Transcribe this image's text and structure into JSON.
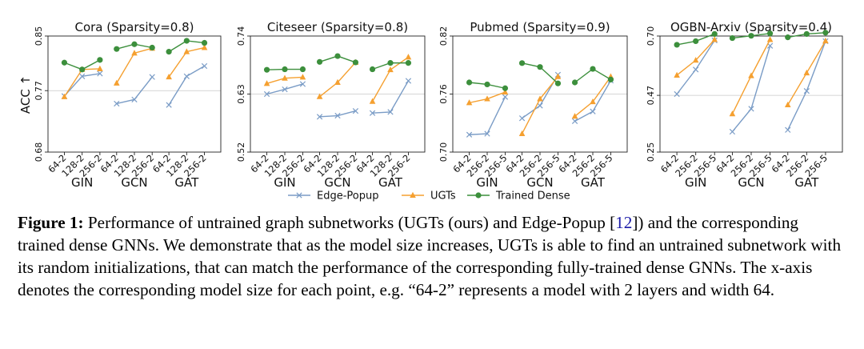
{
  "figure": {
    "yaxis_label": "ACC ↑",
    "legend": [
      {
        "name": "Edge-Popup",
        "color": "#7a9cc6",
        "marker": "x"
      },
      {
        "name": "UGTs",
        "color": "#f5a030",
        "marker": "triangle"
      },
      {
        "name": "Trained Dense",
        "color": "#3c8f3c",
        "marker": "circle"
      }
    ]
  },
  "chart_data": [
    {
      "type": "line",
      "title": "Cora (Sparsity=0.8)",
      "ylim": [
        0.68,
        0.85
      ],
      "yticks": [
        "0.68",
        "0.77",
        "0.85"
      ],
      "groups": [
        {
          "name": "GIN",
          "x": [
            "64-2",
            "128-2",
            "256-2"
          ],
          "series": {
            "Edge-Popup": [
              0.762,
              0.791,
              0.795
            ],
            "UGTs": [
              0.761,
              0.801,
              0.802
            ],
            "Trained Dense": [
              0.811,
              0.801,
              0.815
            ]
          }
        },
        {
          "name": "GCN",
          "x": [
            "64-2",
            "128-2",
            "256-2"
          ],
          "series": {
            "Edge-Popup": [
              0.751,
              0.757,
              0.79
            ],
            "UGTs": [
              0.781,
              0.825,
              0.832
            ],
            "Trained Dense": [
              0.831,
              0.838,
              0.833
            ]
          }
        },
        {
          "name": "GAT",
          "x": [
            "64-2",
            "128-2",
            "256-2"
          ],
          "series": {
            "Edge-Popup": [
              0.749,
              0.791,
              0.806
            ],
            "UGTs": [
              0.79,
              0.827,
              0.833
            ],
            "Trained Dense": [
              0.827,
              0.843,
              0.84
            ]
          }
        }
      ]
    },
    {
      "type": "line",
      "title": "Citeseer (Sparsity=0.8)",
      "ylim": [
        0.52,
        0.74
      ],
      "yticks": [
        "0.52",
        "0.63",
        "0.74"
      ],
      "groups": [
        {
          "name": "GIN",
          "x": [
            "64-2",
            "128-2",
            "256-2"
          ],
          "series": {
            "Edge-Popup": [
              0.63,
              0.639,
              0.649
            ],
            "UGTs": [
              0.65,
              0.66,
              0.662
            ],
            "Trained Dense": [
              0.676,
              0.677,
              0.677
            ]
          }
        },
        {
          "name": "GCN",
          "x": [
            "64-2",
            "128-2",
            "256-2"
          ],
          "series": {
            "Edge-Popup": [
              0.587,
              0.589,
              0.598
            ],
            "UGTs": [
              0.625,
              0.652,
              0.69
            ],
            "Trained Dense": [
              0.691,
              0.702,
              0.69
            ]
          }
        },
        {
          "name": "GAT",
          "x": [
            "64-2",
            "128-2",
            "256-2"
          ],
          "series": {
            "Edge-Popup": [
              0.594,
              0.596,
              0.655
            ],
            "UGTs": [
              0.616,
              0.676,
              0.7
            ],
            "Trained Dense": [
              0.677,
              0.689,
              0.689
            ]
          }
        }
      ]
    },
    {
      "type": "line",
      "title": "Pubmed (Sparsity=0.9)",
      "ylim": [
        0.7,
        0.82
      ],
      "yticks": [
        "0.70",
        "0.76",
        "0.82"
      ],
      "groups": [
        {
          "name": "GIN",
          "x": [
            "64-2",
            "256-2",
            "256-5"
          ],
          "series": {
            "Edge-Popup": [
              0.718,
              0.719,
              0.757
            ],
            "UGTs": [
              0.751,
              0.755,
              0.762
            ],
            "Trained Dense": [
              0.772,
              0.77,
              0.766
            ]
          }
        },
        {
          "name": "GCN",
          "x": [
            "64-2",
            "256-2",
            "256-5"
          ],
          "series": {
            "Edge-Popup": [
              0.735,
              0.748,
              0.78
            ],
            "UGTs": [
              0.719,
              0.755,
              0.778
            ],
            "Trained Dense": [
              0.792,
              0.788,
              0.771
            ]
          }
        },
        {
          "name": "GAT",
          "x": [
            "64-2",
            "256-2",
            "256-5"
          ],
          "series": {
            "Edge-Popup": [
              0.732,
              0.742,
              0.774
            ],
            "UGTs": [
              0.737,
              0.752,
              0.778
            ],
            "Trained Dense": [
              0.772,
              0.786,
              0.775
            ]
          }
        }
      ]
    },
    {
      "type": "line",
      "title": "OGBN-Arxiv (Sparsity=0.4)",
      "ylim": [
        0.25,
        0.7
      ],
      "yticks": [
        "0.25",
        "0.47",
        "0.70"
      ],
      "groups": [
        {
          "name": "GIN",
          "x": [
            "64-2",
            "256-2",
            "256-5"
          ],
          "series": {
            "Edge-Popup": [
              0.475,
              0.57,
              0.683
            ],
            "UGTs": [
              0.548,
              0.606,
              0.686
            ],
            "Trained Dense": [
              0.666,
              0.68,
              0.708
            ]
          }
        },
        {
          "name": "GCN",
          "x": [
            "64-2",
            "256-2",
            "256-5"
          ],
          "series": {
            "Edge-Popup": [
              0.329,
              0.418,
              0.662
            ],
            "UGTs": [
              0.398,
              0.546,
              0.686
            ],
            "Trained Dense": [
              0.692,
              0.701,
              0.71
            ]
          }
        },
        {
          "name": "GAT",
          "x": [
            "64-2",
            "256-2",
            "256-5"
          ],
          "series": {
            "Edge-Popup": [
              0.336,
              0.487,
              0.68
            ],
            "UGTs": [
              0.433,
              0.557,
              0.681
            ],
            "Trained Dense": [
              0.695,
              0.708,
              0.713
            ]
          }
        }
      ]
    }
  ],
  "caption": {
    "label": "Figure 1:",
    "text_before_ref": " Performance of untrained graph subnetworks (UGTs (ours) and Edge-Popup [",
    "ref": "12",
    "text_after_ref": "]) and the corresponding trained dense GNNs. We demonstrate that as the model size increases, UGTs is able to find an untrained subnetwork with its random initializations, that can match the performance of the corresponding fully-trained dense GNNs. The x-axis denotes the corresponding model size for each point, e.g. “64-2” represents a model with 2 layers and width 64."
  }
}
